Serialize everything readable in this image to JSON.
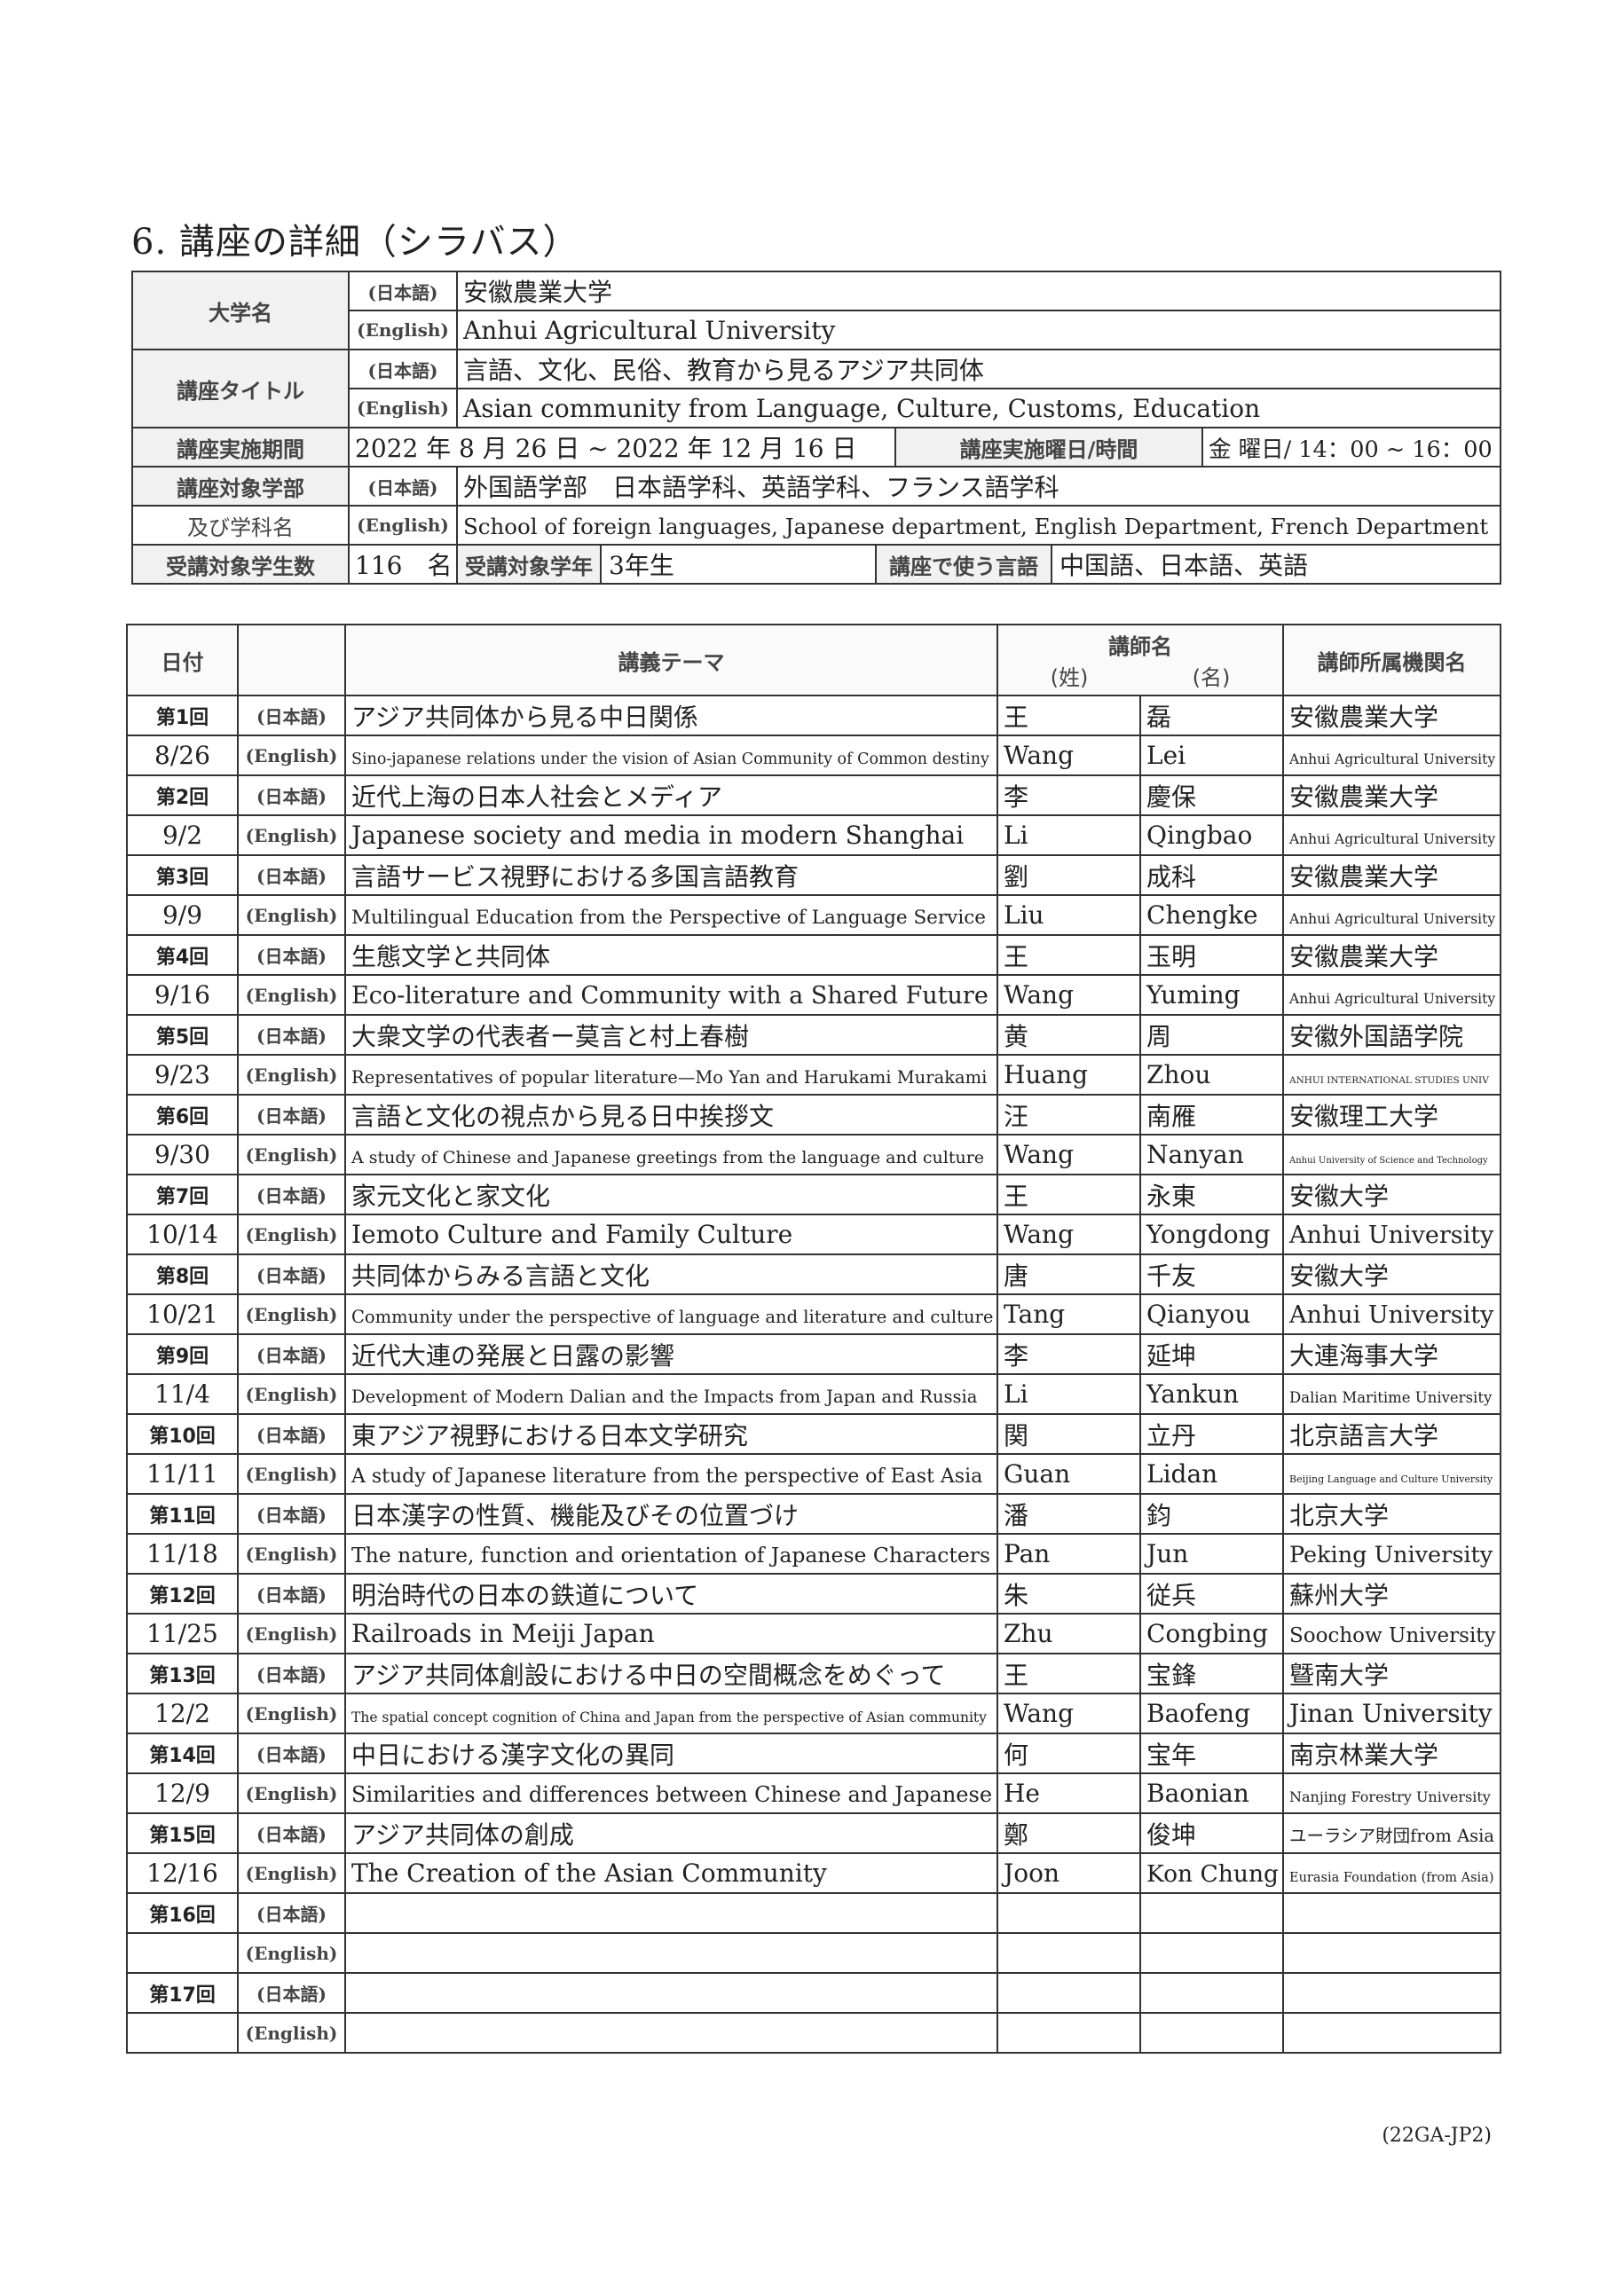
{
  "title": "6. 講座の詳細（シラバス）",
  "info": {
    "university_label": "大学名",
    "lang_jp": "(日本語)",
    "lang_en": "(English)",
    "university_jp": "安徽農業大学",
    "university_en": "Anhui Agricultural University",
    "course_title_label": "講座タイトル",
    "course_title_jp": "言語、文化、民俗、教育から見るアジア共同体",
    "course_title_en": "Asian community from Language, Culture, Customs, Education",
    "period_label": "講座実施期間",
    "period_value": "2022 年 8 月 26 日 ~ 2022 年 12 月 16 日",
    "day_time_label": "講座実施曜日/時間",
    "day_time_value": "金 曜日/ 14：00 ~ 16：00",
    "faculty_label_1": "講座対象学部",
    "faculty_label_2": "及び学科名",
    "faculty_jp": "外国語学部　日本語学科、英語学科、フランス語学科",
    "faculty_en": "School of foreign languages, Japanese department, English Department, French Department",
    "students_label": "受講対象学生数",
    "students_value": "116　名",
    "year_label": "受講対象学年",
    "year_value": "3年生",
    "language_label": "講座で使う言語",
    "language_value": "中国語、日本語、英語"
  },
  "schedule": {
    "headers": {
      "date": "日付",
      "theme": "講義テーマ",
      "lecturer": "講師名",
      "surname": "(姓)",
      "given": "(名)",
      "affiliation": "講師所属機関名"
    },
    "lang_jp": "(日本語)",
    "lang_en": "(English)",
    "rows": [
      {
        "no": "第1回",
        "date": "8/26",
        "theme_jp": "アジア共同体から見る中日関係",
        "theme_en": "Sino-japanese relations under the vision of Asian Community of Common destiny",
        "surname_jp": "王",
        "given_jp": "磊",
        "surname_en": "Wang",
        "given_en": "Lei",
        "aff_jp": "安徽農業大学",
        "aff_en": "Anhui Agricultural University"
      },
      {
        "no": "第2回",
        "date": "9/2",
        "theme_jp": "近代上海の日本人社会とメディア",
        "theme_en": "Japanese society and media in modern Shanghai",
        "surname_jp": "李",
        "given_jp": "慶保",
        "surname_en": "Li",
        "given_en": "Qingbao",
        "aff_jp": "安徽農業大学",
        "aff_en": "Anhui Agricultural University"
      },
      {
        "no": "第3回",
        "date": "9/9",
        "theme_jp": "言語サービス視野における多国言語教育",
        "theme_en": "Multilingual Education from the Perspective of Language Service",
        "surname_jp": "劉",
        "given_jp": "成科",
        "surname_en": "Liu",
        "given_en": "Chengke",
        "aff_jp": "安徽農業大学",
        "aff_en": "Anhui Agricultural University"
      },
      {
        "no": "第4回",
        "date": "9/16",
        "theme_jp": "生態文学と共同体",
        "theme_en": "Eco-literature and Community with a Shared Future",
        "surname_jp": "王",
        "given_jp": "玉明",
        "surname_en": "Wang",
        "given_en": "Yuming",
        "aff_jp": "安徽農業大学",
        "aff_en": "Anhui Agricultural University"
      },
      {
        "no": "第5回",
        "date": "9/23",
        "theme_jp": "大衆文学の代表者ー莫言と村上春樹",
        "theme_en": "Representatives of popular literature—Mo Yan and Harukami Murakami",
        "surname_jp": "黄",
        "given_jp": "周",
        "surname_en": "Huang",
        "given_en": "Zhou",
        "aff_jp": "安徽外国語学院",
        "aff_en": "ANHUI INTERNATIONAL STUDIES UNIV"
      },
      {
        "no": "第6回",
        "date": "9/30",
        "theme_jp": "言語と文化の視点から見る日中挨拶文",
        "theme_en": "A study of Chinese and Japanese greetings from the language and culture",
        "surname_jp": "汪",
        "given_jp": "南雁",
        "surname_en": "Wang",
        "given_en": "Nanyan",
        "aff_jp": "安徽理工大学",
        "aff_en": "Anhui University of Science and Technology"
      },
      {
        "no": "第7回",
        "date": "10/14",
        "theme_jp": "家元文化と家文化",
        "theme_en": "Iemoto Culture and Family Culture",
        "surname_jp": "王",
        "given_jp": "永東",
        "surname_en": "Wang",
        "given_en": "Yongdong",
        "aff_jp": "安徽大学",
        "aff_en": "Anhui University"
      },
      {
        "no": "第8回",
        "date": "10/21",
        "theme_jp": "共同体からみる言語と文化",
        "theme_en": "Community under the perspective of language and literature and culture",
        "surname_jp": "唐",
        "given_jp": "千友",
        "surname_en": "Tang",
        "given_en": "Qianyou",
        "aff_jp": "安徽大学",
        "aff_en": "Anhui University"
      },
      {
        "no": "第9回",
        "date": "11/4",
        "theme_jp": "近代大連の発展と日露の影響",
        "theme_en": "Development of Modern Dalian and the Impacts from Japan and Russia",
        "surname_jp": "李",
        "given_jp": "延坤",
        "surname_en": "Li",
        "given_en": "Yankun",
        "aff_jp": "大連海事大学",
        "aff_en": "Dalian Maritime University"
      },
      {
        "no": "第10回",
        "date": "11/11",
        "theme_jp": "東アジア視野における日本文学研究",
        "theme_en": "A study of Japanese literature from the perspective of East Asia",
        "surname_jp": "関",
        "given_jp": "立丹",
        "surname_en": "Guan",
        "given_en": "Lidan",
        "aff_jp": "北京語言大学",
        "aff_en": "Beijing Language and Culture University"
      },
      {
        "no": "第11回",
        "date": "11/18",
        "theme_jp": "日本漢字の性質、機能及びその位置づけ",
        "theme_en": "The nature, function and orientation of Japanese Characters",
        "surname_jp": "潘",
        "given_jp": "鈞",
        "surname_en": "Pan",
        "given_en": "Jun",
        "aff_jp": "北京大学",
        "aff_en": "Peking University"
      },
      {
        "no": "第12回",
        "date": "11/25",
        "theme_jp": "明治時代の日本の鉄道について",
        "theme_en": "Railroads in Meiji Japan",
        "surname_jp": "朱",
        "given_jp": "従兵",
        "surname_en": "Zhu",
        "given_en": "Congbing",
        "aff_jp": "蘇州大学",
        "aff_en": "Soochow University"
      },
      {
        "no": "第13回",
        "date": "12/2",
        "theme_jp": "アジア共同体創設における中日の空間概念をめぐって",
        "theme_en": "The spatial concept cognition of China and Japan from the perspective of Asian community",
        "surname_jp": "王",
        "given_jp": "宝鋒",
        "surname_en": "Wang",
        "given_en": "Baofeng",
        "aff_jp": "曁南大学",
        "aff_en": "Jinan University"
      },
      {
        "no": "第14回",
        "date": "12/9",
        "theme_jp": "中日における漢字文化の異同",
        "theme_en": "Similarities and differences between Chinese and Japanese",
        "surname_jp": "何",
        "given_jp": "宝年",
        "surname_en": "He",
        "given_en": "Baonian",
        "aff_jp": "南京林業大学",
        "aff_en": "Nanjing Forestry University"
      },
      {
        "no": "第15回",
        "date": "12/16",
        "theme_jp": "アジア共同体の創成",
        "theme_en": "The Creation of the Asian Community",
        "surname_jp": "鄭",
        "given_jp": "俊坤",
        "surname_en": "Joon",
        "given_en": "Kon Chung",
        "aff_jp": "ユーラシア財団from Asia",
        "aff_en": "Eurasia Foundation (from Asia)"
      },
      {
        "no": "第16回",
        "date": "",
        "theme_jp": "",
        "theme_en": "",
        "surname_jp": "",
        "given_jp": "",
        "surname_en": "",
        "given_en": "",
        "aff_jp": "",
        "aff_en": ""
      },
      {
        "no": "第17回",
        "date": "",
        "theme_jp": "",
        "theme_en": "",
        "surname_jp": "",
        "given_jp": "",
        "surname_en": "",
        "given_en": "",
        "aff_jp": "",
        "aff_en": ""
      }
    ]
  },
  "footer_code": "(22GA-JP2)"
}
